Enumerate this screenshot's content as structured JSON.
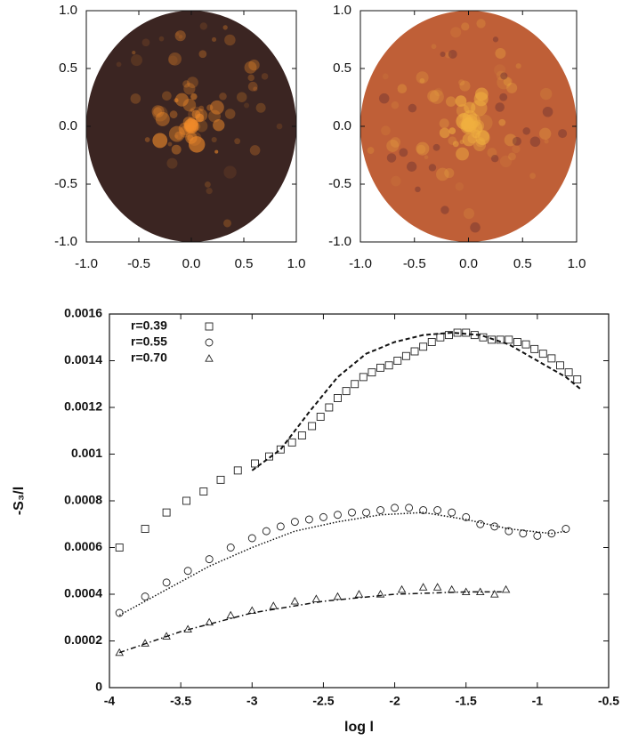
{
  "chart_data": [
    {
      "type": "image",
      "color": "#3b2522",
      "accent": "#f08a2a",
      "xlim": [
        -1,
        1
      ],
      "ylim": [
        -1,
        1
      ],
      "xticks": [
        {
          "value": -1,
          "label": "-1.0"
        },
        -0.5,
        {
          "value": 0,
          "label": "0.0"
        },
        0.5,
        {
          "value": 1,
          "label": "1.0"
        }
      ],
      "yticks": [
        {
          "value": -1,
          "label": "-1.0"
        },
        -0.5,
        {
          "value": 0,
          "label": "0.0"
        },
        0.5,
        {
          "value": 1,
          "label": "1.0"
        }
      ]
    },
    {
      "type": "image",
      "color": "#bf5f37",
      "accent": "#f0b040",
      "xlim": [
        -1,
        1
      ],
      "ylim": [
        -1,
        1
      ],
      "xticks": [
        {
          "value": -1,
          "label": "-1.0"
        },
        -0.5,
        {
          "value": 0,
          "label": "0.0"
        },
        0.5,
        {
          "value": 1,
          "label": "1.0"
        }
      ],
      "yticks": [
        {
          "value": -1,
          "label": "-1.0"
        },
        -0.5,
        {
          "value": 0,
          "label": "0.0"
        },
        0.5,
        {
          "value": 1,
          "label": "1.0"
        }
      ]
    },
    {
      "type": "scatter",
      "xlabel": "log l",
      "ylabel": "-S₃/l",
      "xlim": [
        -4,
        -0.5
      ],
      "ylim": [
        0,
        0.0016
      ],
      "xticks": [
        -4,
        -3.5,
        -3,
        -2.5,
        -2,
        -1.5,
        -1,
        -0.5
      ],
      "yticks": [
        0,
        0.0002,
        0.0004,
        0.0006,
        0.0008,
        0.001,
        0.0012,
        0.0014,
        0.0016
      ],
      "legend": "upper left",
      "series": [
        {
          "name": "r=0.39",
          "marker": "square",
          "color": "#222",
          "x": [
            -3.93,
            -3.75,
            -3.6,
            -3.46,
            -3.34,
            -3.22,
            -3.1,
            -2.98,
            -2.88,
            -2.8,
            -2.72,
            -2.65,
            -2.58,
            -2.52,
            -2.46,
            -2.4,
            -2.34,
            -2.28,
            -2.22,
            -2.16,
            -2.1,
            -2.04,
            -1.98,
            -1.92,
            -1.86,
            -1.8,
            -1.74,
            -1.68,
            -1.62,
            -1.56,
            -1.5,
            -1.44,
            -1.38,
            -1.32,
            -1.26,
            -1.2,
            -1.14,
            -1.08,
            -1.02,
            -0.96,
            -0.9,
            -0.84,
            -0.78,
            -0.72
          ],
          "values": [
            0.0006,
            0.00068,
            0.00075,
            0.0008,
            0.00084,
            0.00089,
            0.00093,
            0.00096,
            0.00099,
            0.00102,
            0.00105,
            0.00108,
            0.00112,
            0.00116,
            0.0012,
            0.00124,
            0.00127,
            0.0013,
            0.00133,
            0.00135,
            0.00137,
            0.00138,
            0.0014,
            0.00142,
            0.00144,
            0.00146,
            0.00148,
            0.0015,
            0.00151,
            0.00152,
            0.00152,
            0.00151,
            0.0015,
            0.00149,
            0.00149,
            0.00149,
            0.00148,
            0.00147,
            0.00145,
            0.00143,
            0.00141,
            0.00138,
            0.00135,
            0.00132
          ]
        },
        {
          "name": "r=0.55",
          "marker": "circle",
          "color": "#222",
          "x": [
            -3.93,
            -3.75,
            -3.6,
            -3.45,
            -3.3,
            -3.15,
            -3.0,
            -2.9,
            -2.8,
            -2.7,
            -2.6,
            -2.5,
            -2.4,
            -2.3,
            -2.2,
            -2.1,
            -2.0,
            -1.9,
            -1.8,
            -1.7,
            -1.6,
            -1.5,
            -1.4,
            -1.3,
            -1.2,
            -1.1,
            -1.0,
            -0.9,
            -0.8
          ],
          "values": [
            0.00032,
            0.00039,
            0.00045,
            0.0005,
            0.00055,
            0.0006,
            0.00064,
            0.00067,
            0.00069,
            0.00071,
            0.00072,
            0.00073,
            0.00074,
            0.00075,
            0.00075,
            0.00076,
            0.00077,
            0.00077,
            0.00076,
            0.00076,
            0.00075,
            0.00073,
            0.0007,
            0.00069,
            0.00067,
            0.00066,
            0.00065,
            0.00066,
            0.00068
          ]
        },
        {
          "name": "r=0.70",
          "marker": "triangle",
          "color": "#222",
          "x": [
            -3.93,
            -3.75,
            -3.6,
            -3.45,
            -3.3,
            -3.15,
            -3.0,
            -2.85,
            -2.7,
            -2.55,
            -2.4,
            -2.25,
            -2.1,
            -1.95,
            -1.8,
            -1.7,
            -1.6,
            -1.5,
            -1.4,
            -1.3,
            -1.22
          ],
          "values": [
            0.00015,
            0.00019,
            0.00022,
            0.00025,
            0.00028,
            0.00031,
            0.00033,
            0.00035,
            0.00037,
            0.00038,
            0.00039,
            0.0004,
            0.0004,
            0.00042,
            0.00043,
            0.00043,
            0.00042,
            0.00041,
            0.00041,
            0.0004,
            0.00042
          ]
        },
        {
          "style": "dashed",
          "color": "#111",
          "x": [
            -3.0,
            -2.8,
            -2.6,
            -2.4,
            -2.2,
            -2.0,
            -1.8,
            -1.6,
            -1.4,
            -1.2,
            -1.0,
            -0.8,
            -0.7
          ],
          "values": [
            0.00093,
            0.00102,
            0.00118,
            0.00133,
            0.00143,
            0.00148,
            0.00151,
            0.00152,
            0.00151,
            0.00147,
            0.0014,
            0.00133,
            0.00128
          ]
        },
        {
          "style": "dotted",
          "color": "#111",
          "x": [
            -3.93,
            -3.6,
            -3.3,
            -3.0,
            -2.7,
            -2.4,
            -2.1,
            -1.8,
            -1.5,
            -1.2,
            -0.9,
            -0.8
          ],
          "values": [
            0.00031,
            0.00042,
            0.00052,
            0.0006,
            0.00067,
            0.00071,
            0.00074,
            0.00075,
            0.00072,
            0.00068,
            0.00066,
            0.00067
          ]
        },
        {
          "style": "dashdot",
          "color": "#111",
          "x": [
            -3.93,
            -3.5,
            -3.0,
            -2.5,
            -2.0,
            -1.5,
            -1.25
          ],
          "values": [
            0.00015,
            0.00024,
            0.00032,
            0.00037,
            0.0004,
            0.00041,
            0.00041
          ]
        }
      ]
    }
  ]
}
